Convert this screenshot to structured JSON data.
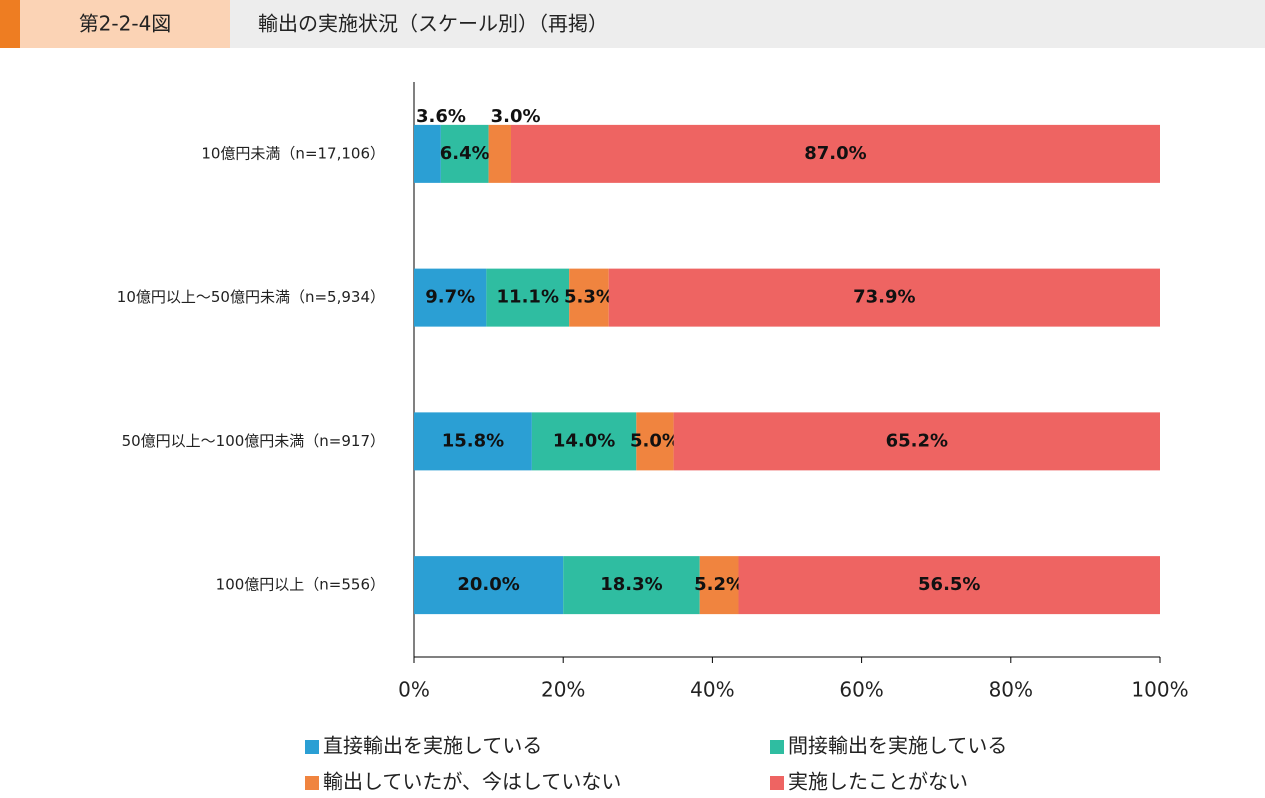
{
  "chart_data": {
    "type": "stacked-bar-horizontal",
    "figure_label": "第2-2-4図",
    "title": "輸出の実施状況（スケール別）（再掲）",
    "categories": [
      "10億円未満（n=17,106）",
      "10億円以上～50億円未満（n=5,934）",
      "50億円以上～100億円未満（n=917）",
      "100億円以上（n=556）"
    ],
    "series": [
      {
        "name": "直接輸出を実施している",
        "color": "#2b9fd4",
        "values": [
          3.6,
          9.7,
          15.8,
          20.0
        ],
        "value_labels": [
          "3.6%",
          "9.7%",
          "15.8%",
          "20.0%"
        ]
      },
      {
        "name": "間接輸出を実施している",
        "color": "#2fbda1",
        "values": [
          6.4,
          11.1,
          14.0,
          18.3
        ],
        "value_labels": [
          "6.4%",
          "11.1%",
          "14.0%",
          "18.3%"
        ]
      },
      {
        "name": "輸出していたが、今はしていない",
        "color": "#f0843f",
        "values": [
          3.0,
          5.3,
          5.0,
          5.2
        ],
        "value_labels": [
          "3.0%",
          "5.3%",
          "5.0%",
          "5.2%"
        ]
      },
      {
        "name": "実施したことがない",
        "color": "#ee6462",
        "values": [
          87.0,
          73.9,
          65.2,
          56.5
        ],
        "value_labels": [
          "87.0%",
          "73.9%",
          "65.2%",
          "56.5%"
        ]
      }
    ],
    "xlim": [
      0,
      100
    ],
    "xticks": [
      {
        "value": 0,
        "label": "0%"
      },
      {
        "value": 20,
        "label": "20%"
      },
      {
        "value": 40,
        "label": "40%"
      },
      {
        "value": 60,
        "label": "60%"
      },
      {
        "value": 80,
        "label": "80%"
      },
      {
        "value": 100,
        "label": "100%"
      }
    ]
  }
}
